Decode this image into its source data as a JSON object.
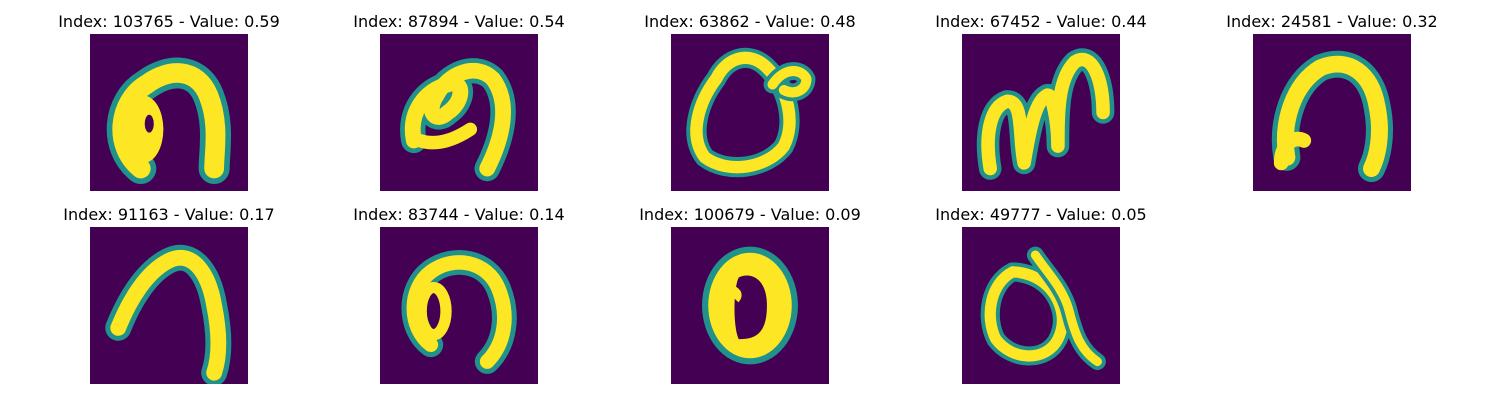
{
  "colors": {
    "background_cell": "#440154",
    "mid_cell": "#21918c",
    "bright_cell": "#fde725"
  },
  "panels": [
    {
      "title": "Index: 103765 - Value: 0.59",
      "glyph": "blob-hook-icon"
    },
    {
      "title": "Index: 87894 - Value: 0.54",
      "glyph": "curled-hook-icon"
    },
    {
      "title": "Index: 63862 - Value: 0.48",
      "glyph": "loop-with-tail-icon"
    },
    {
      "title": "Index: 67452 - Value: 0.44",
      "glyph": "double-arch-icon"
    },
    {
      "title": "Index: 24581 - Value: 0.32",
      "glyph": "arch-icon"
    },
    {
      "title": "Index: 91163 - Value: 0.17",
      "glyph": "tall-arch-icon"
    },
    {
      "title": "Index: 83744 - Value: 0.14",
      "glyph": "loop-hook-icon"
    },
    {
      "title": "Index: 100679 - Value: 0.09",
      "glyph": "filled-oval-icon"
    },
    {
      "title": "Index: 49777 - Value: 0.05",
      "glyph": "loop-tail-icon"
    }
  ]
}
